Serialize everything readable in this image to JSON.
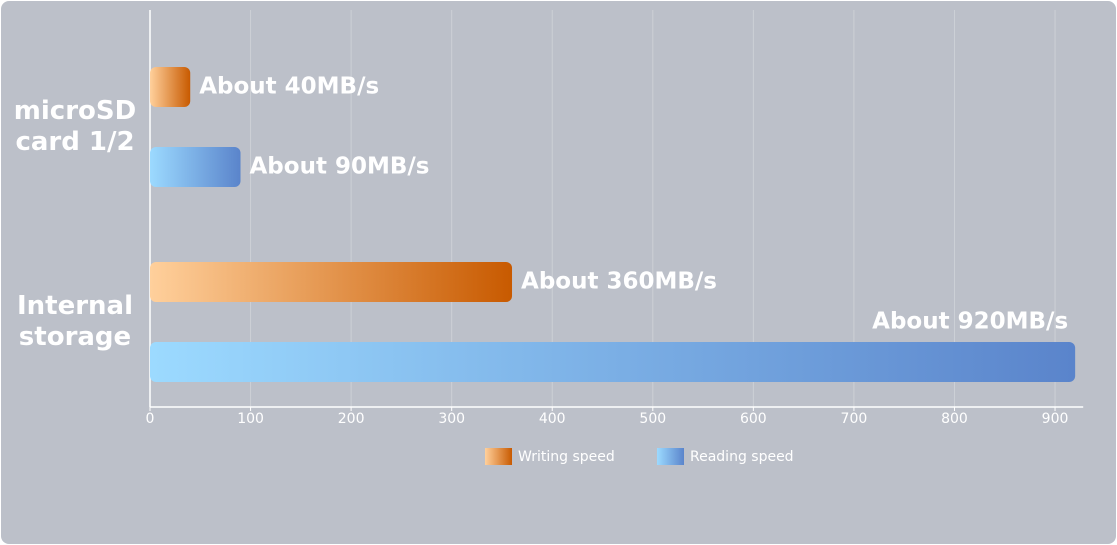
{
  "chart_data": {
    "type": "hbar",
    "categories": [
      "microSD card 1/2",
      "Internal storage"
    ],
    "series": [
      {
        "name": "Writing speed",
        "color": "#c85a00",
        "gradient_start": "#ffd09c",
        "values": [
          40,
          360
        ],
        "value_labels": [
          "About 40MB/s",
          "About 360MB/s"
        ]
      },
      {
        "name": "Reading speed",
        "color": "#5a84cb",
        "gradient_start": "#9cdaff",
        "values": [
          90,
          920
        ],
        "value_labels": [
          "About 90MB/s",
          "About 920MB/s"
        ]
      }
    ],
    "xlim": [
      0,
      928
    ],
    "xticks": [
      0,
      100,
      200,
      300,
      400,
      500,
      600,
      700,
      800,
      900
    ],
    "grid": true
  }
}
